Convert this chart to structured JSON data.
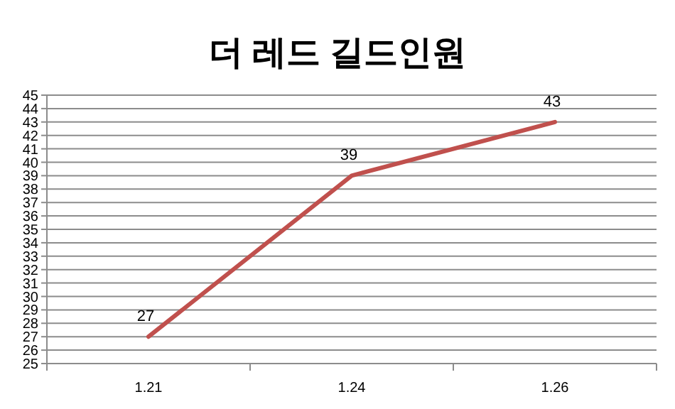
{
  "chart_data": {
    "type": "line",
    "title": "더 레드 길드인원",
    "categories": [
      "1.21",
      "1.24",
      "1.26"
    ],
    "series": [
      {
        "color": "#c0504d",
        "values": [
          27,
          39,
          43
        ]
      }
    ],
    "ylim": [
      25,
      45
    ],
    "yticks": [
      25,
      26,
      27,
      28,
      29,
      30,
      31,
      32,
      33,
      34,
      35,
      36,
      37,
      38,
      39,
      40,
      41,
      42,
      43,
      44,
      45
    ],
    "grid": "y",
    "data_labels": true,
    "marker": "none",
    "line_style": "solid"
  }
}
